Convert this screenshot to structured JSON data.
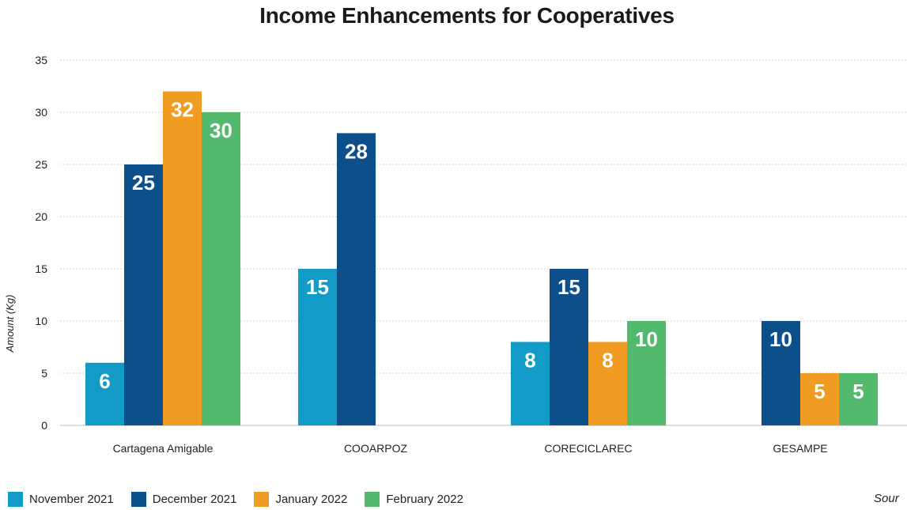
{
  "chart_data": {
    "type": "bar",
    "title": "Income Enhancements for Cooperatives",
    "ylabel": "Amount (Kg)",
    "xlabel": "",
    "ylim": [
      0,
      35
    ],
    "yticks": [
      0,
      5,
      10,
      15,
      20,
      25,
      30,
      35
    ],
    "grid": true,
    "legend_position": "bottom-left",
    "categories": [
      "Cartagena Amigable",
      "COOARPOZ",
      "CORECICLAREC",
      "GESAMPE"
    ],
    "series": [
      {
        "name": "November 2021",
        "color": "#129bc6",
        "values": [
          6,
          15,
          8,
          null
        ],
        "labels": [
          "6",
          "15",
          "8",
          ""
        ]
      },
      {
        "name": "December 2021",
        "color": "#0d4f8b",
        "values": [
          25,
          28,
          15,
          10
        ],
        "labels": [
          "25",
          "28",
          "15",
          "10"
        ]
      },
      {
        "name": "January 2022",
        "color": "#f09c22",
        "values": [
          32,
          null,
          8,
          5
        ],
        "labels": [
          "32",
          "",
          "8",
          "5"
        ]
      },
      {
        "name": "February 2022",
        "color": "#53b96d",
        "values": [
          30,
          null,
          10,
          5
        ],
        "labels": [
          "30",
          "",
          "10",
          "5"
        ]
      }
    ]
  },
  "source_text": "Sour"
}
